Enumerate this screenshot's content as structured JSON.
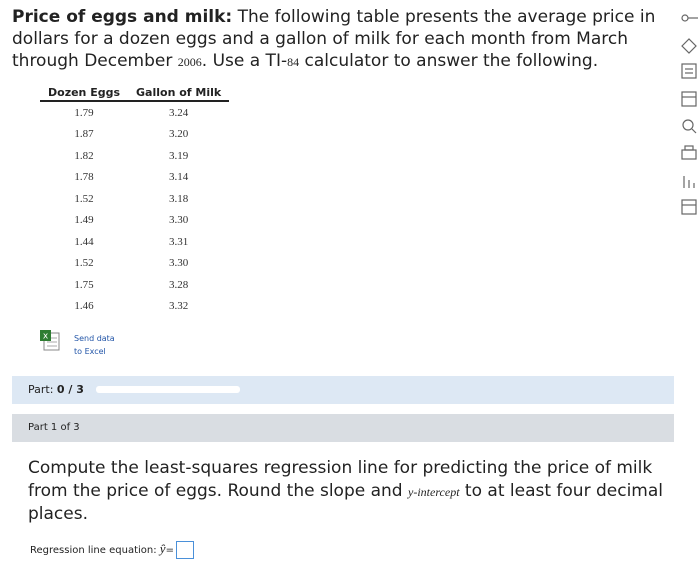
{
  "header": {
    "title": "Price of eggs and milk:",
    "text": [
      "The following table presents the average price in dollars for a dozen eggs and a gallon of milk for each month from March through December ",
      "2006",
      ". Use a TI-",
      "84",
      " calculator to answer the following."
    ]
  },
  "table": {
    "columns": [
      "Dozen Eggs",
      "Gallon of Milk"
    ],
    "rows": [
      [
        "1.79",
        "3.24"
      ],
      [
        "1.87",
        "3.20"
      ],
      [
        "1.82",
        "3.19"
      ],
      [
        "1.78",
        "3.14"
      ],
      [
        "1.52",
        "3.18"
      ],
      [
        "1.49",
        "3.30"
      ],
      [
        "1.44",
        "3.31"
      ],
      [
        "1.52",
        "3.30"
      ],
      [
        "1.75",
        "3.28"
      ],
      [
        "1.46",
        "3.32"
      ]
    ]
  },
  "excel_link": [
    "Send data",
    "to Excel"
  ],
  "progress": {
    "label": "Part:",
    "value": "0 / 3"
  },
  "part": {
    "title": "Part 1 of 3",
    "question": [
      "Compute the least-squares regression line for predicting the price of milk from the price of eggs. Round the slope and ",
      "y-intercept",
      " to at least four decimal places."
    ],
    "answer_label": "Regression line equation:",
    "answer_symbol": "ŷ",
    "equals": "="
  }
}
